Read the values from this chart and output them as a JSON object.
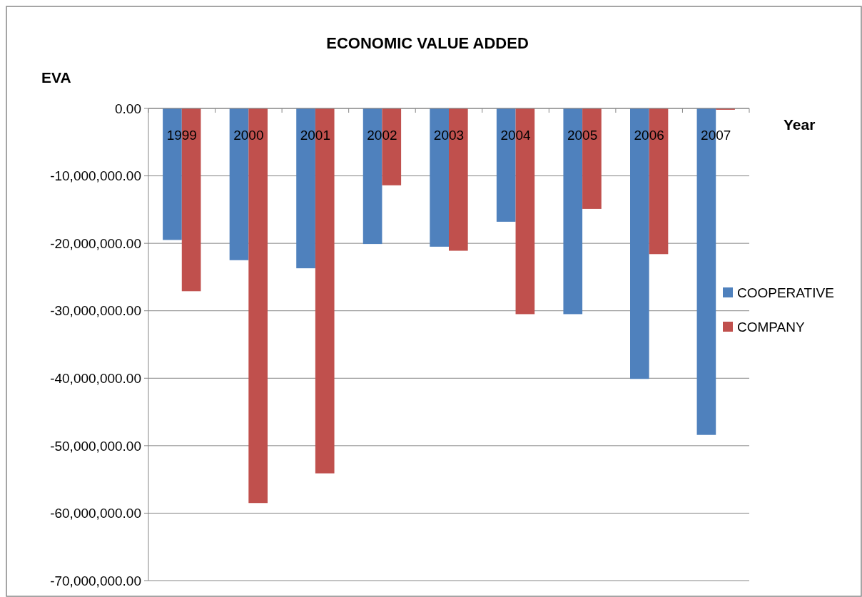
{
  "chart_data": {
    "type": "bar",
    "title": "ECONOMIC VALUE ADDED",
    "ylabel": "EVA",
    "xlabel": "Year",
    "categories": [
      "1999",
      "2000",
      "2001",
      "2002",
      "2003",
      "2004",
      "2005",
      "2006",
      "2007"
    ],
    "series": [
      {
        "name": "COOPERATIVE",
        "color": "#4f81bd",
        "values": [
          -19500000,
          -22500000,
          -23700000,
          -20100000,
          -20500000,
          -16800000,
          -30500000,
          -40100000,
          -48400000
        ]
      },
      {
        "name": "COMPANY",
        "color": "#c0504d",
        "values": [
          -27100000,
          -58500000,
          -54100000,
          -11400000,
          -21100000,
          -30500000,
          -14900000,
          -21600000,
          -200000
        ]
      }
    ],
    "ylim": [
      -70000000,
      0
    ],
    "yticks": [
      {
        "value": 0,
        "label": "0.00"
      },
      {
        "value": -10000000,
        "label": "-10,000,000.00"
      },
      {
        "value": -20000000,
        "label": "-20,000,000.00"
      },
      {
        "value": -30000000,
        "label": "-30,000,000.00"
      },
      {
        "value": -40000000,
        "label": "-40,000,000.00"
      },
      {
        "value": -50000000,
        "label": "-50,000,000.00"
      },
      {
        "value": -60000000,
        "label": "-60,000,000.00"
      },
      {
        "value": -70000000,
        "label": "-70,000,000.00"
      }
    ],
    "grid": "y",
    "legend": "right"
  }
}
